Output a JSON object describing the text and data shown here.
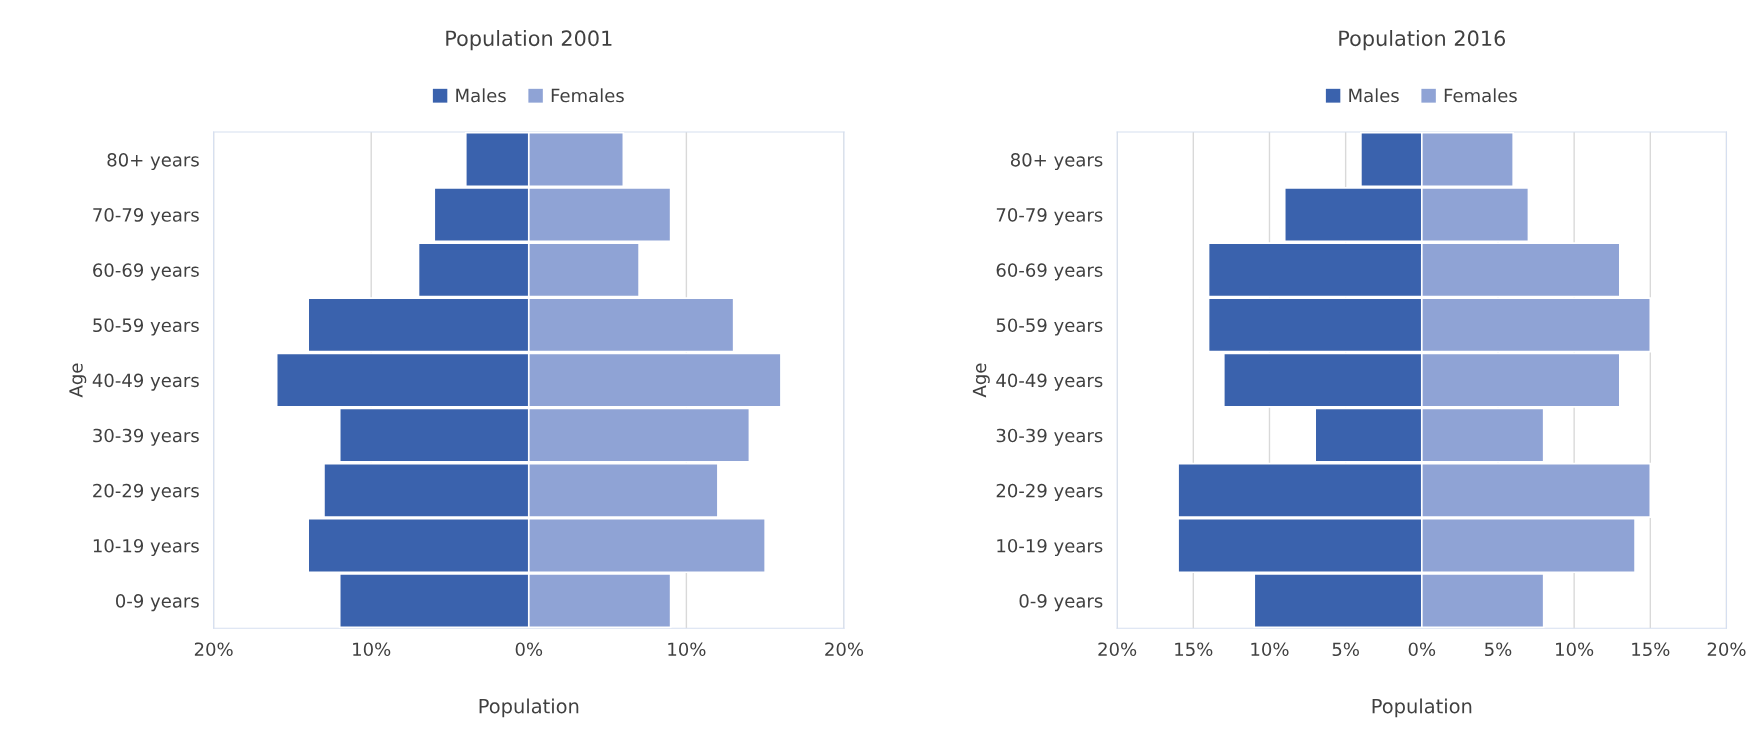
{
  "chart_data": [
    {
      "type": "bar",
      "title": "Population 2001",
      "xlabel": "Population",
      "ylabel": "Age",
      "orientation": "horizontal",
      "stacked": true,
      "categories": [
        "80+ years",
        "70-79 years",
        "60-69 years",
        "50-59 years",
        "40-49 years",
        "30-39 years",
        "20-29 years",
        "10-19 years",
        "0-9 years"
      ],
      "series": [
        {
          "name": "Males",
          "color": "#3a62ad",
          "values": [
            -4,
            -6,
            -7,
            -14,
            -16,
            -12,
            -13,
            -14,
            -12
          ]
        },
        {
          "name": "Females",
          "color": "#8fa3d5",
          "values": [
            6,
            9,
            7,
            13,
            16,
            14,
            12,
            15,
            9
          ]
        }
      ],
      "xlim": [
        -20,
        20
      ],
      "xticks": [
        {
          "value": -20,
          "label": "20%"
        },
        {
          "value": -10,
          "label": "10%"
        },
        {
          "value": 0,
          "label": "0%"
        },
        {
          "value": 10,
          "label": "10%"
        },
        {
          "value": 20,
          "label": "20%"
        }
      ],
      "grid": "x",
      "legend": "top"
    },
    {
      "type": "bar",
      "title": "Population 2016",
      "xlabel": "Population",
      "ylabel": "Age",
      "orientation": "horizontal",
      "stacked": true,
      "categories": [
        "80+ years",
        "70-79 years",
        "60-69 years",
        "50-59 years",
        "40-49 years",
        "30-39 years",
        "20-29 years",
        "10-19 years",
        "0-9 years"
      ],
      "series": [
        {
          "name": "Males",
          "color": "#3a62ad",
          "values": [
            -4,
            -9,
            -14,
            -14,
            -13,
            -7,
            -16,
            -16,
            -11
          ]
        },
        {
          "name": "Females",
          "color": "#8fa3d5",
          "values": [
            6,
            7,
            13,
            15,
            13,
            8,
            15,
            14,
            8
          ]
        }
      ],
      "xlim": [
        -20,
        20
      ],
      "xticks": [
        {
          "value": -20,
          "label": "20%"
        },
        {
          "value": -15,
          "label": "15%"
        },
        {
          "value": -10,
          "label": "10%"
        },
        {
          "value": -5,
          "label": "5%"
        },
        {
          "value": 0,
          "label": "0%"
        },
        {
          "value": 5,
          "label": "5%"
        },
        {
          "value": 10,
          "label": "10%"
        },
        {
          "value": 15,
          "label": "15%"
        },
        {
          "value": 20,
          "label": "20%"
        }
      ],
      "grid": "x",
      "legend": "top"
    }
  ]
}
